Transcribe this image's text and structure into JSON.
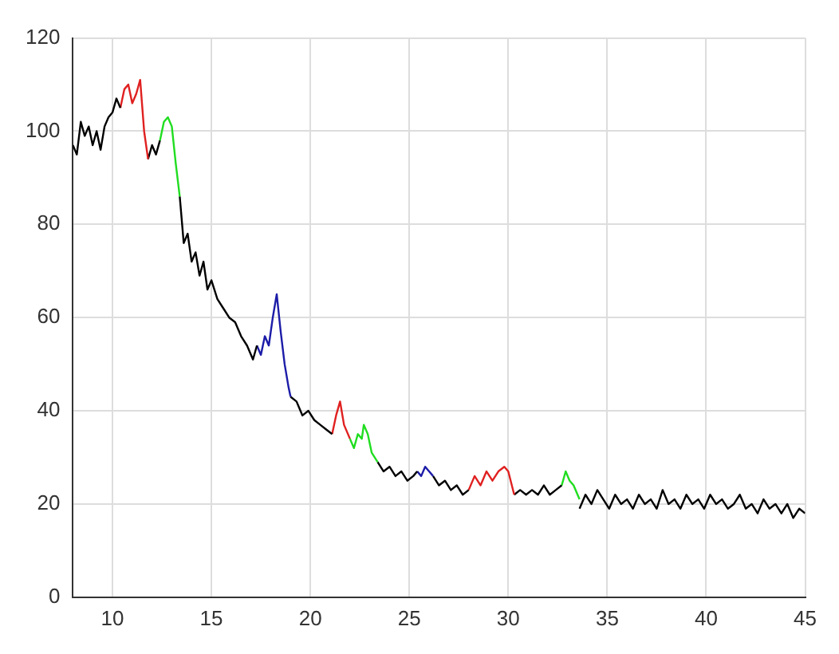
{
  "chart_data": {
    "type": "line",
    "xlim": [
      8,
      45
    ],
    "ylim": [
      0,
      120
    ],
    "xticks": [
      10,
      15,
      20,
      25,
      30,
      35,
      40,
      45
    ],
    "yticks": [
      0,
      20,
      40,
      60,
      80,
      100,
      120
    ],
    "grid": true,
    "marker": "none",
    "line_style": "solid",
    "series": [
      {
        "color": "#000000",
        "x": [
          8.0,
          8.2,
          8.4,
          8.6,
          8.8,
          9.0,
          9.2,
          9.4,
          9.6,
          9.8,
          10.0,
          10.2,
          10.4
        ],
        "values": [
          97,
          95,
          102,
          99,
          101,
          97,
          100,
          96,
          101,
          103,
          104,
          107,
          105
        ]
      },
      {
        "color": "#e02020",
        "x": [
          10.4,
          10.6,
          10.8,
          11.0,
          11.2,
          11.4,
          11.6,
          11.8
        ],
        "values": [
          105,
          109,
          110,
          106,
          108,
          111,
          100,
          94
        ]
      },
      {
        "color": "#000000",
        "x": [
          11.8,
          12.0,
          12.2,
          12.4
        ],
        "values": [
          94,
          97,
          95,
          98
        ]
      },
      {
        "color": "#20dd20",
        "x": [
          12.4,
          12.6,
          12.8,
          13.0,
          13.2,
          13.4
        ],
        "values": [
          98,
          102,
          103,
          101,
          93,
          86
        ]
      },
      {
        "color": "#000000",
        "x": [
          13.4,
          13.6,
          13.8,
          14.0,
          14.2,
          14.4,
          14.6,
          14.8,
          15.0,
          15.3,
          15.6,
          15.9,
          16.2,
          16.5,
          16.8,
          17.1,
          17.3
        ],
        "values": [
          86,
          76,
          78,
          72,
          74,
          69,
          72,
          66,
          68,
          64,
          62,
          60,
          59,
          56,
          54,
          51,
          54
        ]
      },
      {
        "color": "#1c1ca8",
        "x": [
          17.3,
          17.5,
          17.7,
          17.9,
          18.1,
          18.3,
          18.5,
          18.7,
          18.9,
          19.0
        ],
        "values": [
          54,
          52,
          56,
          54,
          60,
          65,
          57,
          50,
          45,
          43
        ]
      },
      {
        "color": "#000000",
        "x": [
          19.0,
          19.3,
          19.6,
          19.9,
          20.2,
          20.5,
          20.8,
          21.1
        ],
        "values": [
          43,
          42,
          39,
          40,
          38,
          37,
          36,
          35
        ]
      },
      {
        "color": "#e02020",
        "x": [
          21.1,
          21.3,
          21.5,
          21.7,
          22.0
        ],
        "values": [
          35,
          39,
          42,
          37,
          34
        ]
      },
      {
        "color": "#20dd20",
        "x": [
          22.0,
          22.2,
          22.4,
          22.6,
          22.7,
          22.9,
          23.1,
          23.4
        ],
        "values": [
          34,
          32,
          35,
          34,
          37,
          35,
          31,
          29
        ]
      },
      {
        "color": "#000000",
        "x": [
          23.4,
          23.7,
          24.0,
          24.3,
          24.6,
          24.9,
          25.2,
          25.4
        ],
        "values": [
          29,
          27,
          28,
          26,
          27,
          25,
          26,
          27
        ]
      },
      {
        "color": "#1c1ca8",
        "x": [
          25.4,
          25.6,
          25.8,
          26.0,
          26.2
        ],
        "values": [
          27,
          26,
          28,
          27,
          26
        ]
      },
      {
        "color": "#000000",
        "x": [
          26.2,
          26.5,
          26.8,
          27.1,
          27.4,
          27.7,
          28.0
        ],
        "values": [
          26,
          24,
          25,
          23,
          24,
          22,
          23
        ]
      },
      {
        "color": "#e02020",
        "x": [
          28.0,
          28.3,
          28.6,
          28.9,
          29.2,
          29.5,
          29.8,
          30.0,
          30.3
        ],
        "values": [
          23,
          26,
          24,
          27,
          25,
          27,
          28,
          27,
          22
        ]
      },
      {
        "color": "#000000",
        "x": [
          30.3,
          30.6,
          30.9,
          31.2,
          31.5,
          31.8,
          32.1,
          32.4,
          32.7
        ],
        "values": [
          22,
          23,
          22,
          23,
          22,
          24,
          22,
          23,
          24
        ]
      },
      {
        "color": "#20dd20",
        "x": [
          32.7,
          32.9,
          33.1,
          33.3,
          33.6
        ],
        "values": [
          24,
          27,
          25,
          24,
          21
        ]
      },
      {
        "color": "#000000",
        "x": [
          33.6,
          33.9,
          34.2,
          34.5,
          34.8,
          35.1,
          35.4,
          35.7,
          36.0,
          36.3,
          36.6,
          36.9,
          37.2,
          37.5,
          37.8,
          38.1,
          38.4,
          38.7,
          39.0,
          39.3,
          39.6,
          39.9,
          40.2,
          40.5,
          40.8,
          41.1,
          41.4,
          41.7,
          42.0,
          42.3,
          42.6,
          42.9,
          43.2,
          43.5,
          43.8,
          44.1,
          44.4,
          44.7,
          45.0
        ],
        "values": [
          19,
          22,
          20,
          23,
          21,
          19,
          22,
          20,
          21,
          19,
          22,
          20,
          21,
          19,
          23,
          20,
          21,
          19,
          22,
          20,
          21,
          19,
          22,
          20,
          21,
          19,
          20,
          22,
          19,
          20,
          18,
          21,
          19,
          20,
          18,
          20,
          17,
          19,
          18
        ]
      }
    ]
  }
}
